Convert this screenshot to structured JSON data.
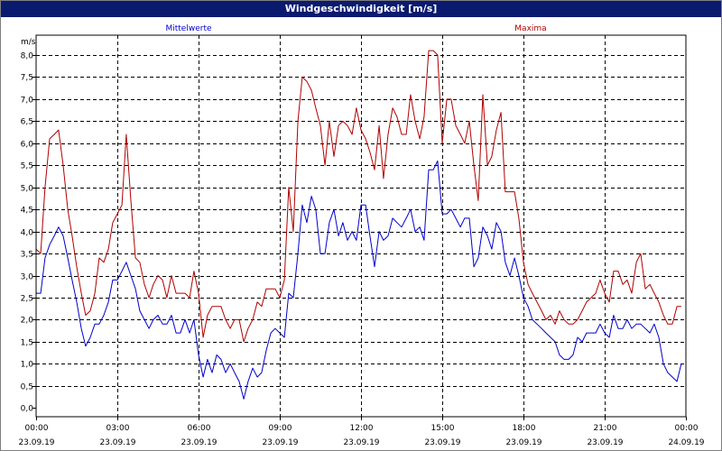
{
  "window": {
    "title": "Windgeschwindigkeit [m/s]"
  },
  "chart_data": {
    "type": "line",
    "title": "Windgeschwindigkeit [m/s]",
    "ylabel": "m/s",
    "xlabel": "",
    "ylim": [
      -0.2,
      8.45
    ],
    "xlim": [
      0,
      24
    ],
    "grid": true,
    "y_ticks": [
      "0,0",
      "0,5",
      "1,0",
      "1,5",
      "2,0",
      "2,5",
      "3,0",
      "3,5",
      "4,0",
      "4,5",
      "5,0",
      "5,5",
      "6,0",
      "6,5",
      "7,0",
      "7,5",
      "8,0"
    ],
    "x_ticks": [
      {
        "time": "00:00",
        "date": "23.09.19"
      },
      {
        "time": "03:00",
        "date": "23.09.19"
      },
      {
        "time": "06:00",
        "date": "23.09.19"
      },
      {
        "time": "09:00",
        "date": "23.09.19"
      },
      {
        "time": "12:00",
        "date": "23.09.19"
      },
      {
        "time": "15:00",
        "date": "23.09.19"
      },
      {
        "time": "18:00",
        "date": "23.09.19"
      },
      {
        "time": "21:00",
        "date": "23.09.19"
      },
      {
        "time": "00:00",
        "date": "24.09.19"
      }
    ],
    "series": [
      {
        "name": "Mittelwerte",
        "color": "#0000cc",
        "points": [
          [
            0.0,
            2.6
          ],
          [
            0.17,
            2.6
          ],
          [
            0.33,
            3.4
          ],
          [
            0.5,
            3.7
          ],
          [
            0.67,
            3.9
          ],
          [
            0.83,
            4.1
          ],
          [
            1.0,
            3.9
          ],
          [
            1.17,
            3.4
          ],
          [
            1.33,
            2.9
          ],
          [
            1.5,
            2.4
          ],
          [
            1.67,
            1.8
          ],
          [
            1.83,
            1.4
          ],
          [
            2.0,
            1.6
          ],
          [
            2.17,
            1.9
          ],
          [
            2.33,
            1.9
          ],
          [
            2.5,
            2.1
          ],
          [
            2.67,
            2.4
          ],
          [
            2.83,
            2.9
          ],
          [
            3.0,
            2.9
          ],
          [
            3.17,
            3.1
          ],
          [
            3.33,
            3.3
          ],
          [
            3.5,
            3.0
          ],
          [
            3.67,
            2.7
          ],
          [
            3.83,
            2.2
          ],
          [
            4.0,
            2.0
          ],
          [
            4.17,
            1.8
          ],
          [
            4.33,
            2.0
          ],
          [
            4.5,
            2.1
          ],
          [
            4.67,
            1.9
          ],
          [
            4.83,
            1.9
          ],
          [
            5.0,
            2.1
          ],
          [
            5.17,
            1.7
          ],
          [
            5.33,
            1.7
          ],
          [
            5.5,
            2.0
          ],
          [
            5.67,
            1.7
          ],
          [
            5.83,
            2.0
          ],
          [
            6.0,
            1.2
          ],
          [
            6.17,
            0.7
          ],
          [
            6.33,
            1.1
          ],
          [
            6.5,
            0.8
          ],
          [
            6.67,
            1.2
          ],
          [
            6.83,
            1.1
          ],
          [
            7.0,
            0.8
          ],
          [
            7.17,
            1.0
          ],
          [
            7.33,
            0.8
          ],
          [
            7.5,
            0.6
          ],
          [
            7.67,
            0.2
          ],
          [
            7.83,
            0.6
          ],
          [
            8.0,
            0.9
          ],
          [
            8.17,
            0.7
          ],
          [
            8.33,
            0.8
          ],
          [
            8.5,
            1.3
          ],
          [
            8.67,
            1.7
          ],
          [
            8.83,
            1.8
          ],
          [
            9.0,
            1.7
          ],
          [
            9.17,
            1.6
          ],
          [
            9.33,
            2.6
          ],
          [
            9.5,
            2.5
          ],
          [
            9.67,
            3.5
          ],
          [
            9.83,
            4.6
          ],
          [
            10.0,
            4.2
          ],
          [
            10.17,
            4.8
          ],
          [
            10.33,
            4.5
          ],
          [
            10.5,
            3.5
          ],
          [
            10.67,
            3.5
          ],
          [
            10.83,
            4.2
          ],
          [
            11.0,
            4.5
          ],
          [
            11.17,
            3.9
          ],
          [
            11.33,
            4.2
          ],
          [
            11.5,
            3.8
          ],
          [
            11.67,
            4.0
          ],
          [
            11.83,
            3.8
          ],
          [
            12.0,
            4.6
          ],
          [
            12.17,
            4.6
          ],
          [
            12.33,
            3.9
          ],
          [
            12.5,
            3.2
          ],
          [
            12.67,
            4.0
          ],
          [
            12.83,
            3.8
          ],
          [
            13.0,
            3.9
          ],
          [
            13.17,
            4.3
          ],
          [
            13.33,
            4.2
          ],
          [
            13.5,
            4.1
          ],
          [
            13.67,
            4.3
          ],
          [
            13.83,
            4.5
          ],
          [
            14.0,
            4.0
          ],
          [
            14.17,
            4.1
          ],
          [
            14.33,
            3.8
          ],
          [
            14.5,
            5.4
          ],
          [
            14.67,
            5.4
          ],
          [
            14.83,
            5.6
          ],
          [
            15.0,
            4.4
          ],
          [
            15.17,
            4.4
          ],
          [
            15.33,
            4.5
          ],
          [
            15.5,
            4.3
          ],
          [
            15.67,
            4.1
          ],
          [
            15.83,
            4.3
          ],
          [
            16.0,
            4.3
          ],
          [
            16.17,
            3.2
          ],
          [
            16.33,
            3.4
          ],
          [
            16.5,
            4.1
          ],
          [
            16.67,
            3.9
          ],
          [
            16.83,
            3.6
          ],
          [
            17.0,
            4.2
          ],
          [
            17.17,
            4.0
          ],
          [
            17.33,
            3.3
          ],
          [
            17.5,
            3.0
          ],
          [
            17.67,
            3.4
          ],
          [
            17.83,
            3.0
          ],
          [
            18.0,
            2.5
          ],
          [
            18.17,
            2.3
          ],
          [
            18.33,
            2.0
          ],
          [
            18.5,
            1.9
          ],
          [
            18.67,
            1.8
          ],
          [
            18.83,
            1.7
          ],
          [
            19.0,
            1.6
          ],
          [
            19.17,
            1.5
          ],
          [
            19.33,
            1.2
          ],
          [
            19.5,
            1.1
          ],
          [
            19.67,
            1.1
          ],
          [
            19.83,
            1.2
          ],
          [
            20.0,
            1.6
          ],
          [
            20.17,
            1.5
          ],
          [
            20.33,
            1.7
          ],
          [
            20.5,
            1.7
          ],
          [
            20.67,
            1.7
          ],
          [
            20.83,
            1.9
          ],
          [
            21.0,
            1.7
          ],
          [
            21.17,
            1.6
          ],
          [
            21.33,
            2.1
          ],
          [
            21.5,
            1.8
          ],
          [
            21.67,
            1.8
          ],
          [
            21.83,
            2.0
          ],
          [
            22.0,
            1.8
          ],
          [
            22.17,
            1.9
          ],
          [
            22.33,
            1.9
          ],
          [
            22.5,
            1.8
          ],
          [
            22.67,
            1.7
          ],
          [
            22.83,
            1.9
          ],
          [
            23.0,
            1.6
          ],
          [
            23.17,
            1.0
          ],
          [
            23.33,
            0.8
          ],
          [
            23.5,
            0.7
          ],
          [
            23.67,
            0.6
          ],
          [
            23.83,
            1.0
          ]
        ]
      },
      {
        "name": "Maxima",
        "color": "#b00000",
        "points": [
          [
            0.0,
            3.6
          ],
          [
            0.17,
            3.5
          ],
          [
            0.33,
            5.0
          ],
          [
            0.5,
            6.1
          ],
          [
            0.67,
            6.2
          ],
          [
            0.83,
            6.3
          ],
          [
            1.0,
            5.5
          ],
          [
            1.17,
            4.5
          ],
          [
            1.33,
            3.9
          ],
          [
            1.5,
            3.2
          ],
          [
            1.67,
            2.6
          ],
          [
            1.83,
            2.1
          ],
          [
            2.0,
            2.2
          ],
          [
            2.17,
            2.6
          ],
          [
            2.33,
            3.4
          ],
          [
            2.5,
            3.3
          ],
          [
            2.67,
            3.6
          ],
          [
            2.83,
            4.2
          ],
          [
            3.0,
            4.4
          ],
          [
            3.17,
            4.6
          ],
          [
            3.33,
            6.2
          ],
          [
            3.5,
            4.7
          ],
          [
            3.67,
            3.4
          ],
          [
            3.83,
            3.3
          ],
          [
            4.0,
            2.8
          ],
          [
            4.17,
            2.5
          ],
          [
            4.33,
            2.8
          ],
          [
            4.5,
            3.0
          ],
          [
            4.67,
            2.9
          ],
          [
            4.83,
            2.5
          ],
          [
            5.0,
            3.0
          ],
          [
            5.17,
            2.6
          ],
          [
            5.33,
            2.6
          ],
          [
            5.5,
            2.6
          ],
          [
            5.67,
            2.5
          ],
          [
            5.83,
            3.1
          ],
          [
            6.0,
            2.6
          ],
          [
            6.17,
            1.6
          ],
          [
            6.33,
            2.1
          ],
          [
            6.5,
            2.3
          ],
          [
            6.67,
            2.3
          ],
          [
            6.83,
            2.3
          ],
          [
            7.0,
            2.0
          ],
          [
            7.17,
            1.8
          ],
          [
            7.33,
            2.0
          ],
          [
            7.5,
            2.0
          ],
          [
            7.67,
            1.5
          ],
          [
            7.83,
            1.8
          ],
          [
            8.0,
            2.0
          ],
          [
            8.17,
            2.4
          ],
          [
            8.33,
            2.3
          ],
          [
            8.5,
            2.7
          ],
          [
            8.67,
            2.7
          ],
          [
            8.83,
            2.7
          ],
          [
            9.0,
            2.5
          ],
          [
            9.17,
            2.9
          ],
          [
            9.33,
            5.0
          ],
          [
            9.5,
            4.0
          ],
          [
            9.67,
            6.5
          ],
          [
            9.83,
            7.5
          ],
          [
            10.0,
            7.4
          ],
          [
            10.17,
            7.2
          ],
          [
            10.33,
            6.8
          ],
          [
            10.5,
            6.4
          ],
          [
            10.67,
            5.5
          ],
          [
            10.83,
            6.5
          ],
          [
            11.0,
            5.7
          ],
          [
            11.17,
            6.4
          ],
          [
            11.33,
            6.5
          ],
          [
            11.5,
            6.4
          ],
          [
            11.67,
            6.2
          ],
          [
            11.83,
            6.8
          ],
          [
            12.0,
            6.3
          ],
          [
            12.17,
            6.1
          ],
          [
            12.33,
            5.8
          ],
          [
            12.5,
            5.4
          ],
          [
            12.67,
            6.4
          ],
          [
            12.83,
            5.2
          ],
          [
            13.0,
            6.2
          ],
          [
            13.17,
            6.8
          ],
          [
            13.33,
            6.6
          ],
          [
            13.5,
            6.2
          ],
          [
            13.67,
            6.2
          ],
          [
            13.83,
            7.1
          ],
          [
            14.0,
            6.5
          ],
          [
            14.17,
            6.1
          ],
          [
            14.33,
            6.6
          ],
          [
            14.5,
            8.1
          ],
          [
            14.67,
            8.1
          ],
          [
            14.83,
            8.0
          ],
          [
            15.0,
            6.0
          ],
          [
            15.17,
            7.0
          ],
          [
            15.33,
            7.0
          ],
          [
            15.5,
            6.4
          ],
          [
            15.67,
            6.2
          ],
          [
            15.83,
            6.0
          ],
          [
            16.0,
            6.5
          ],
          [
            16.17,
            5.5
          ],
          [
            16.33,
            4.7
          ],
          [
            16.5,
            7.1
          ],
          [
            16.67,
            5.5
          ],
          [
            16.83,
            5.7
          ],
          [
            17.0,
            6.3
          ],
          [
            17.17,
            6.7
          ],
          [
            17.33,
            4.9
          ],
          [
            17.5,
            4.9
          ],
          [
            17.67,
            4.9
          ],
          [
            17.83,
            4.3
          ],
          [
            18.0,
            3.3
          ],
          [
            18.17,
            2.8
          ],
          [
            18.33,
            2.6
          ],
          [
            18.5,
            2.4
          ],
          [
            18.67,
            2.2
          ],
          [
            18.83,
            2.0
          ],
          [
            19.0,
            2.1
          ],
          [
            19.17,
            1.9
          ],
          [
            19.33,
            2.2
          ],
          [
            19.5,
            2.0
          ],
          [
            19.67,
            1.9
          ],
          [
            19.83,
            1.9
          ],
          [
            20.0,
            2.0
          ],
          [
            20.17,
            2.2
          ],
          [
            20.33,
            2.4
          ],
          [
            20.5,
            2.5
          ],
          [
            20.67,
            2.6
          ],
          [
            20.83,
            2.9
          ],
          [
            21.0,
            2.6
          ],
          [
            21.17,
            2.4
          ],
          [
            21.33,
            3.1
          ],
          [
            21.5,
            3.1
          ],
          [
            21.67,
            2.8
          ],
          [
            21.83,
            2.9
          ],
          [
            22.0,
            2.6
          ],
          [
            22.17,
            3.3
          ],
          [
            22.33,
            3.5
          ],
          [
            22.5,
            2.7
          ],
          [
            22.67,
            2.8
          ],
          [
            22.83,
            2.6
          ],
          [
            23.0,
            2.4
          ],
          [
            23.17,
            2.1
          ],
          [
            23.33,
            1.9
          ],
          [
            23.5,
            1.9
          ],
          [
            23.67,
            2.3
          ],
          [
            23.83,
            2.3
          ]
        ]
      }
    ]
  }
}
